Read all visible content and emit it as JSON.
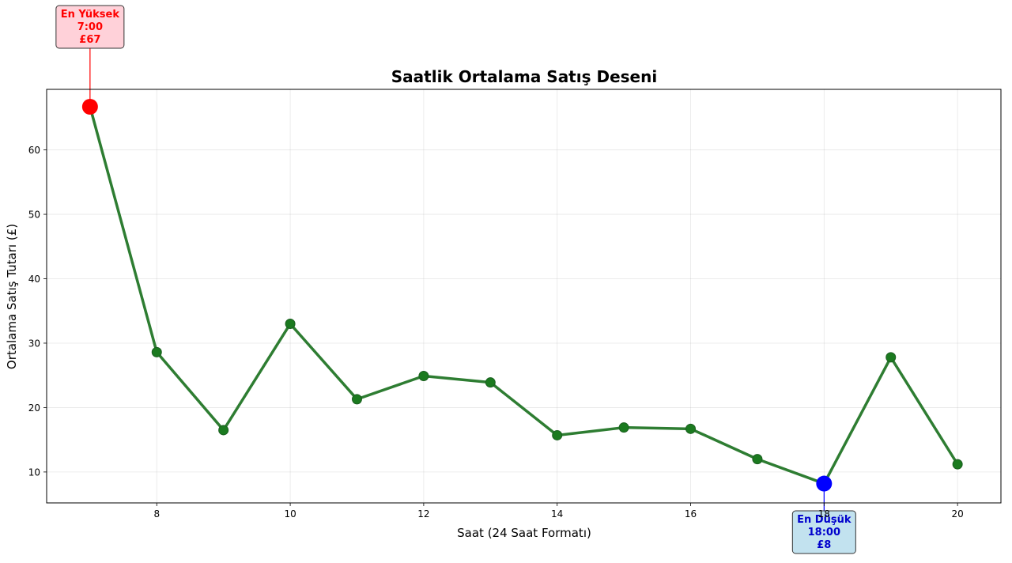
{
  "chart_data": {
    "type": "line",
    "title": "Saatlik Ortalama Satış Deseni",
    "xlabel": "Saat (24 Saat Formatı)",
    "ylabel": "Ortalama Satış Tutarı (£)",
    "xlim": [
      6.35,
      20.65
    ],
    "ylim": [
      5.2,
      69.4
    ],
    "xticks": [
      8,
      10,
      12,
      14,
      16,
      18,
      20
    ],
    "xtick_labels": [
      "8",
      "10",
      "12",
      "14",
      "16",
      "18",
      "20"
    ],
    "yticks": [
      10,
      20,
      30,
      40,
      50,
      60
    ],
    "ytick_labels": [
      "10",
      "20",
      "30",
      "40",
      "50",
      "60"
    ],
    "grid": true,
    "series": [
      {
        "x": [
          7,
          8,
          9,
          10,
          11,
          12,
          13,
          14,
          15,
          16,
          17,
          18,
          19,
          20
        ],
        "y": [
          66.7,
          28.6,
          16.5,
          33.0,
          21.3,
          24.9,
          23.9,
          15.7,
          16.9,
          16.7,
          12.0,
          8.2,
          27.8,
          11.2
        ],
        "color": "#2e7d32"
      }
    ],
    "annotations": [
      {
        "kind": "max",
        "x": 7,
        "y": 66.7,
        "lines": [
          "En Yüksek",
          "7:00",
          "£67"
        ],
        "text_color": "#ff0000",
        "box_color": "#ffd1d9",
        "marker_color": "#ff0000"
      },
      {
        "kind": "min",
        "x": 18,
        "y": 8.2,
        "lines": [
          "En Düşük",
          "18:00",
          "£8"
        ],
        "text_color": "#0000cc",
        "box_color": "#c2e2ef",
        "marker_color": "#0000ff"
      }
    ]
  }
}
